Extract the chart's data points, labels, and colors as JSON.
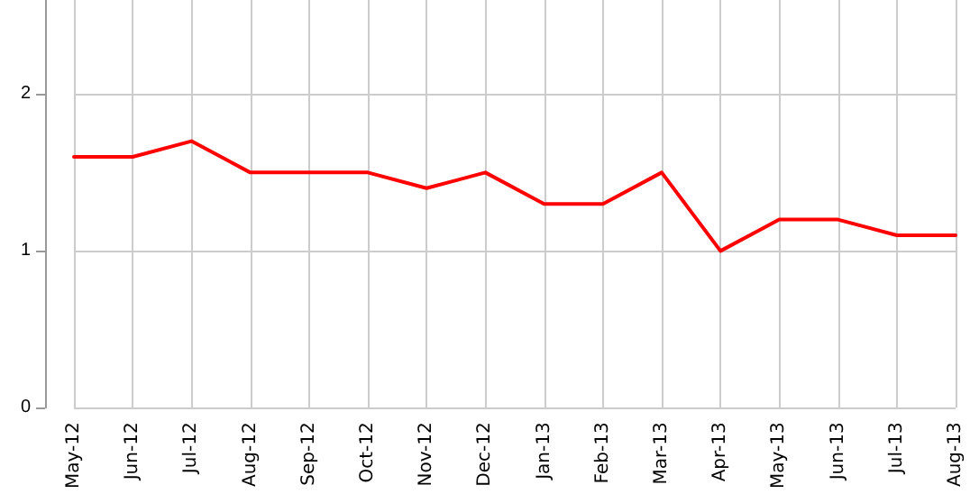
{
  "chart_data": {
    "type": "line",
    "categories": [
      "May-12",
      "Jun-12",
      "Jul-12",
      "Aug-12",
      "Sep-12",
      "Oct-12",
      "Nov-12",
      "Dec-12",
      "Jan-13",
      "Feb-13",
      "Mar-13",
      "Apr-13",
      "May-13",
      "Jun-13",
      "Jul-13",
      "Aug-13"
    ],
    "series": [
      {
        "color": "#ff0000",
        "values": [
          1.6,
          1.6,
          1.7,
          1.5,
          1.5,
          1.5,
          1.4,
          1.5,
          1.3,
          1.3,
          1.5,
          1.0,
          1.2,
          1.2,
          1.1,
          1.1
        ]
      }
    ],
    "ylim": [
      0,
      2.6
    ],
    "yticks": [
      0,
      1,
      2
    ],
    "grid": true,
    "marker": "none",
    "line_style": "solid"
  }
}
